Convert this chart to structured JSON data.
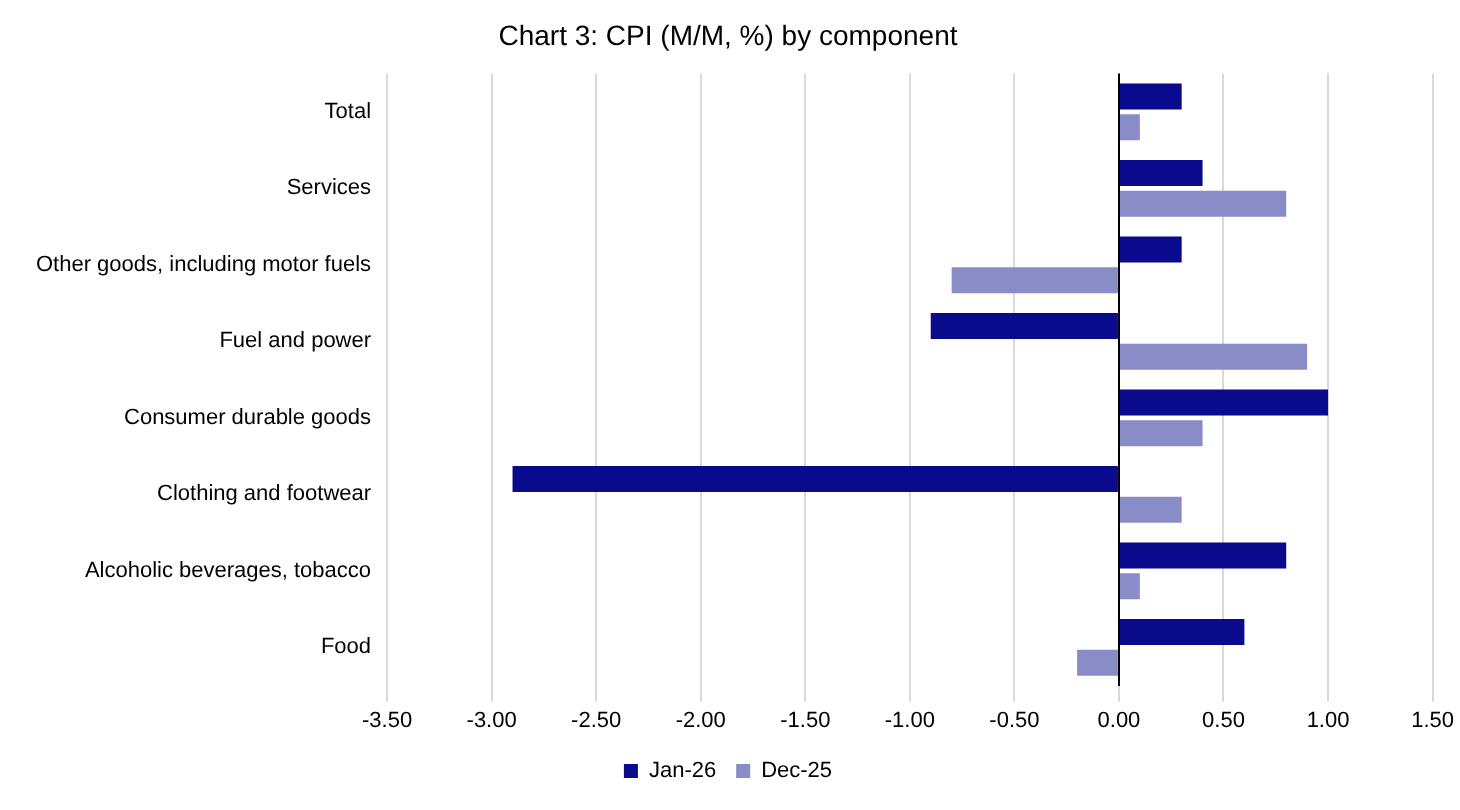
{
  "chart_data": {
    "type": "bar",
    "orientation": "horizontal",
    "title": "Chart 3: CPI (M/M, %) by component",
    "categories": [
      "Total",
      "Services",
      "Other goods, including motor fuels",
      "Fuel and power",
      "Consumer durable goods",
      "Clothing and footwear",
      "Alcoholic beverages, tobacco",
      "Food"
    ],
    "series": [
      {
        "name": "Jan-26",
        "color": "#0a0a8c",
        "values": [
          0.3,
          0.4,
          0.3,
          -0.9,
          1.0,
          -2.9,
          0.8,
          0.6
        ]
      },
      {
        "name": "Dec-25",
        "color": "#8a8cc8",
        "values": [
          0.1,
          0.8,
          -0.8,
          0.9,
          0.4,
          0.3,
          0.1,
          -0.2
        ]
      }
    ],
    "xlim": [
      -3.5,
      1.5
    ],
    "xticks": [
      {
        "value": -3.5,
        "label": "-3.50"
      },
      {
        "value": -3,
        "label": "-3.00"
      },
      {
        "value": -2.5,
        "label": "-2.50"
      },
      {
        "value": -2,
        "label": "-2.00"
      },
      {
        "value": -1.5,
        "label": "-1.50"
      },
      {
        "value": -1,
        "label": "-1.00"
      },
      {
        "value": -0.5,
        "label": "-0.50"
      },
      {
        "value": 0,
        "label": "0.00"
      },
      {
        "value": 0.5,
        "label": "0.50"
      },
      {
        "value": 1,
        "label": "1.00"
      },
      {
        "value": 1.5,
        "label": "1.50"
      }
    ],
    "grid": "x",
    "legend": "bottom"
  }
}
